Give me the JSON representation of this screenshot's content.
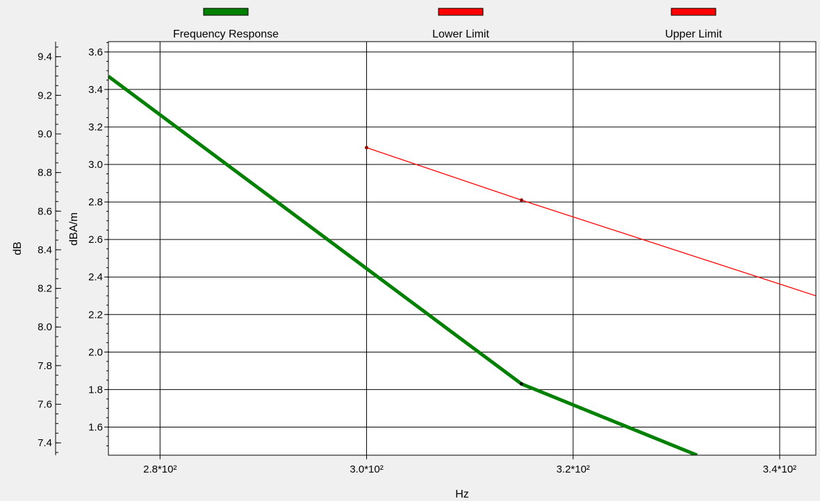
{
  "chart_data": {
    "type": "line",
    "xlabel": "Hz",
    "ylabel_outer": "dB",
    "ylabel_inner": "dBA/m",
    "xlim": [
      275,
      343.5
    ],
    "ylim_inner": [
      1.45,
      3.655
    ],
    "ylim_outer": [
      7.336,
      9.478
    ],
    "x_ticks": [
      {
        "value": 280,
        "label": "2.8*10²"
      },
      {
        "value": 300,
        "label": "3.0*10²"
      },
      {
        "value": 320,
        "label": "3.2*10²"
      },
      {
        "value": 340,
        "label": "3.4*10²"
      }
    ],
    "y_ticks_inner": [
      {
        "value": 1.6,
        "label": "1.6"
      },
      {
        "value": 1.8,
        "label": "1.8"
      },
      {
        "value": 2.0,
        "label": "2.0"
      },
      {
        "value": 2.2,
        "label": "2.2"
      },
      {
        "value": 2.4,
        "label": "2.4"
      },
      {
        "value": 2.6,
        "label": "2.6"
      },
      {
        "value": 2.8,
        "label": "2.8"
      },
      {
        "value": 3.0,
        "label": "3.0"
      },
      {
        "value": 3.2,
        "label": "3.2"
      },
      {
        "value": 3.4,
        "label": "3.4"
      },
      {
        "value": 3.6,
        "label": "3.6"
      }
    ],
    "y_ticks_outer": [
      {
        "value": 7.4,
        "label": "7.4"
      },
      {
        "value": 7.6,
        "label": "7.6"
      },
      {
        "value": 7.8,
        "label": "7.8"
      },
      {
        "value": 8.0,
        "label": "8.0"
      },
      {
        "value": 8.2,
        "label": "8.2"
      },
      {
        "value": 8.4,
        "label": "8.4"
      },
      {
        "value": 8.6,
        "label": "8.6"
      },
      {
        "value": 8.8,
        "label": "8.8"
      },
      {
        "value": 9.0,
        "label": "9.0"
      },
      {
        "value": 9.2,
        "label": "9.2"
      },
      {
        "value": 9.4,
        "label": "9.4"
      }
    ],
    "grid": true,
    "legend_position": "top",
    "series": [
      {
        "name": "Frequency Response",
        "color": "#008000",
        "line_width": "thick",
        "x": [
          275,
          315,
          332
        ],
        "y": [
          3.47,
          1.83,
          1.45
        ],
        "markers_at": [
          315
        ]
      },
      {
        "name": "Lower Limit",
        "color": "#ff0000",
        "line_width": "thin",
        "x": [
          300,
          315,
          343.5
        ],
        "y": [
          3.09,
          2.81,
          2.3
        ],
        "markers_at": [
          300,
          315
        ]
      },
      {
        "name": "Upper Limit",
        "color": "#ff0000",
        "line_width": "thin",
        "x": [],
        "y": [],
        "markers_at": []
      }
    ]
  }
}
